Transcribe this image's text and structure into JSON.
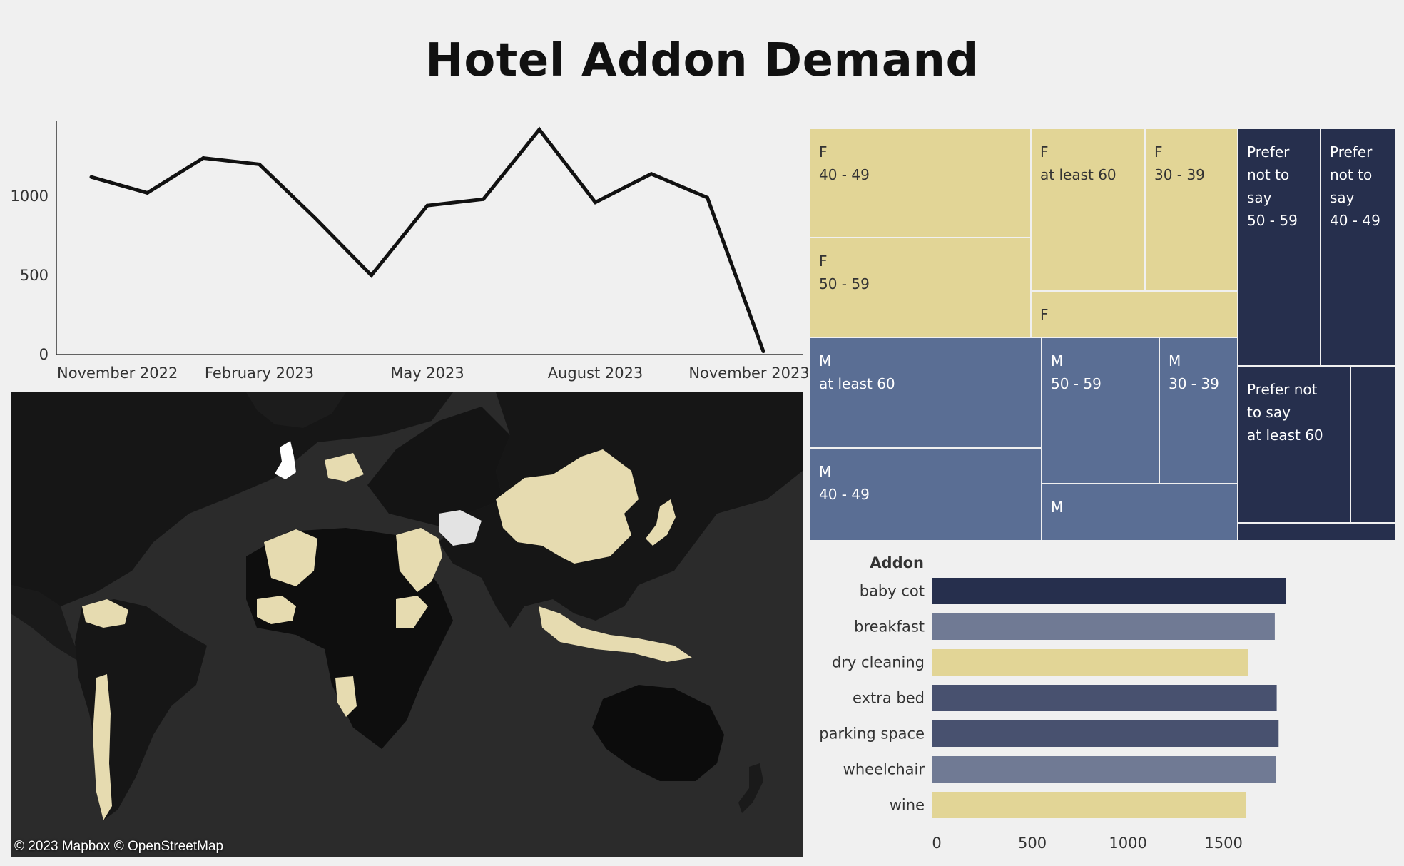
{
  "dashboard": {
    "title": "Hotel Addon Demand"
  },
  "line_chart": {
    "x_tick_labels": [
      "November 2022",
      "February 2023",
      "May 2023",
      "August 2023",
      "November 2023"
    ],
    "y_tick_labels": [
      "0",
      "500",
      "1000"
    ]
  },
  "map": {
    "attribution": "© 2023 Mapbox  © OpenStreetMap",
    "colors": {
      "ocean": "#2b2b2b",
      "land_low": "#111111",
      "land_mid": "#e6dbb0",
      "land_high": "#ffffff"
    }
  },
  "treemap": {
    "tiles": [
      {
        "label": "F\n40 - 49",
        "gender": "F",
        "age": "40 - 49"
      },
      {
        "label": "F\n50 - 59",
        "gender": "F",
        "age": "50 - 59"
      },
      {
        "label": "F\nat least 60",
        "gender": "F",
        "age": "at least 60"
      },
      {
        "label": "F\n30 - 39",
        "gender": "F",
        "age": "30 - 39"
      },
      {
        "label": "F",
        "gender": "F",
        "age": ""
      },
      {
        "label": "M\nat least 60",
        "gender": "M",
        "age": "at least 60"
      },
      {
        "label": "M\n40 - 49",
        "gender": "M",
        "age": "40 - 49"
      },
      {
        "label": "M\n50 - 59",
        "gender": "M",
        "age": "50 - 59"
      },
      {
        "label": "M\n30 - 39",
        "gender": "M",
        "age": "30 - 39"
      },
      {
        "label": "M",
        "gender": "M",
        "age": ""
      },
      {
        "label": "Prefer\nnot to\nsay\n50 - 59",
        "gender": "Prefer not to say",
        "age": "50 - 59"
      },
      {
        "label": "Prefer\nnot to\nsay\n40 - 49",
        "gender": "Prefer not to say",
        "age": "40 - 49"
      },
      {
        "label": "Prefer not\nto say\nat least 60",
        "gender": "Prefer not to say",
        "age": "at least 60"
      },
      {
        "label": "",
        "gender": "Prefer not to say",
        "age": ""
      },
      {
        "label": "",
        "gender": "Prefer not to say",
        "age": ""
      }
    ],
    "colors": {
      "F": "#e2d596",
      "M": "#5a6e94",
      "Prefer not to say": "#262f4d"
    }
  },
  "colors": {
    "line": "#111111",
    "axis": "#333333"
  },
  "chart_data": [
    {
      "type": "line",
      "x": [
        "2022-11",
        "2022-12",
        "2023-01",
        "2023-02",
        "2023-03",
        "2023-04",
        "2023-05",
        "2023-06",
        "2023-07",
        "2023-08",
        "2023-09",
        "2023-10",
        "2023-11"
      ],
      "values": [
        1120,
        1020,
        1240,
        1200,
        860,
        500,
        940,
        980,
        1420,
        960,
        1140,
        990,
        20
      ],
      "ylim": [
        0,
        1450
      ],
      "xlabel": "",
      "ylabel": "",
      "grid": false
    },
    {
      "type": "bar",
      "orientation": "horizontal",
      "axis_title": "Addon",
      "categories": [
        "baby cot",
        "breakfast",
        "dry cleaning",
        "extra bed",
        "parking space",
        "wheelchair",
        "wine"
      ],
      "values": [
        1850,
        1790,
        1650,
        1800,
        1810,
        1795,
        1640
      ],
      "colors": [
        "#262f4d",
        "#707a94",
        "#e2d596",
        "#48516f",
        "#48516f",
        "#707a94",
        "#e2d596"
      ],
      "x_ticks": [
        0,
        500,
        1000,
        1500
      ],
      "xlim": [
        0,
        1850
      ]
    },
    {
      "type": "treemap",
      "group_by": [
        "gender",
        "age"
      ]
    }
  ]
}
